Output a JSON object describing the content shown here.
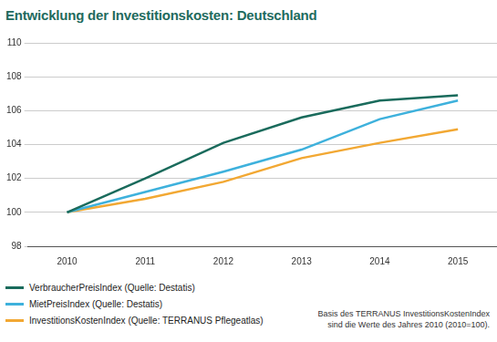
{
  "chart_data": {
    "type": "line",
    "title": "Entwicklung der Investitionskosten: Deutschland",
    "categories": [
      "2010",
      "2011",
      "2012",
      "2013",
      "2014",
      "2015"
    ],
    "series": [
      {
        "name": "VerbraucherPreisIndex (Quelle: Destatis)",
        "color": "#1a6b5c",
        "values": [
          100,
          102.0,
          104.1,
          105.6,
          106.6,
          106.9
        ]
      },
      {
        "name": "MietPreisIndex (Quelle: Destatis)",
        "color": "#3eb1dc",
        "values": [
          100,
          101.2,
          102.4,
          103.7,
          105.5,
          106.6
        ]
      },
      {
        "name": "InvestitionsKostenIndex (Quelle: TERRANUS Pflegeatlas)",
        "color": "#f2a833",
        "values": [
          100,
          100.8,
          101.8,
          103.2,
          104.1,
          104.9
        ]
      }
    ],
    "ylim": [
      98,
      110
    ],
    "yticks": [
      98,
      100,
      102,
      104,
      106,
      108,
      110
    ],
    "grid": true,
    "legend": "bottom-left",
    "annotations": [
      "Basis des TERRANUS InvestitionsKostenIndex",
      "sind die Werte des Jahres 2010 (2010=100)."
    ]
  }
}
